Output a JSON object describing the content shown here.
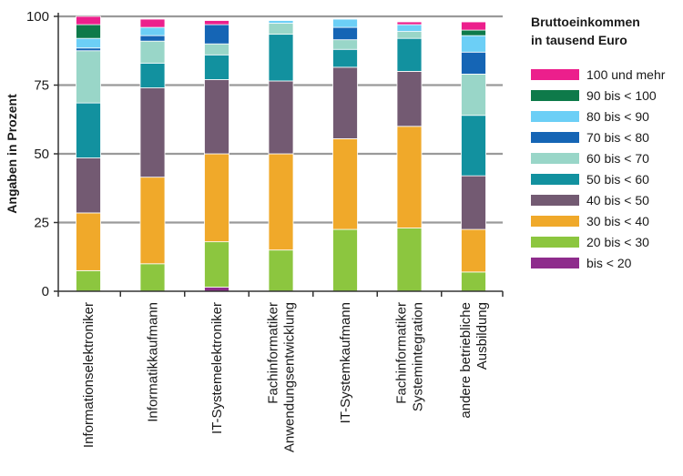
{
  "chart_data": {
    "type": "bar",
    "stacked": true,
    "ylabel": "Angaben in Prozent",
    "ylim": [
      0,
      100
    ],
    "yticks": [
      0,
      25,
      50,
      75,
      100
    ],
    "grid": true,
    "legend_position": "right",
    "legend_title": [
      "Bruttoeinkommen",
      "in tausend Euro"
    ],
    "categories": [
      [
        "Informationselektroniker"
      ],
      [
        "Informatikkaufmann"
      ],
      [
        "IT-Systemelektroniker"
      ],
      [
        "Fachinformatiker",
        "Anwendungsentwicklung"
      ],
      [
        "IT-Systemkaufmann"
      ],
      [
        "Fachinformatiker",
        "Systemintegration"
      ],
      [
        "andere betriebliche",
        "Ausbildung"
      ]
    ],
    "series": [
      {
        "name": "bis < 20",
        "color": "#8e2c8c",
        "values": [
          0,
          0,
          1.5,
          0,
          0,
          0,
          0
        ]
      },
      {
        "name": "20 bis < 30",
        "color": "#8cc63f",
        "values": [
          7.5,
          10,
          16.5,
          15,
          22.5,
          23,
          7
        ]
      },
      {
        "name": "30 bis < 40",
        "color": "#f0a92a",
        "values": [
          21,
          31.5,
          32,
          35,
          33,
          37,
          15.5
        ]
      },
      {
        "name": "40 bis < 50",
        "color": "#735a72",
        "values": [
          20,
          32.5,
          27,
          26.5,
          26,
          20,
          19.5
        ]
      },
      {
        "name": "50 bis < 60",
        "color": "#12919f",
        "values": [
          20,
          9,
          9,
          17,
          6.5,
          12,
          22
        ]
      },
      {
        "name": "60 bis < 70",
        "color": "#99d6c8",
        "values": [
          19,
          8,
          4,
          4,
          3.5,
          2.5,
          15
        ]
      },
      {
        "name": "70 bis < 80",
        "color": "#1565b5",
        "values": [
          1,
          2,
          7,
          0,
          4.5,
          0,
          8
        ]
      },
      {
        "name": "80 bis < 90",
        "color": "#6ccff6",
        "values": [
          3.5,
          3,
          0,
          1,
          3,
          2.5,
          6
        ]
      },
      {
        "name": "90 bis < 100",
        "color": "#0e7a4a",
        "values": [
          5,
          0,
          0,
          0,
          0,
          0,
          2
        ]
      },
      {
        "name": "100 und mehr",
        "color": "#ec1f8c",
        "values": [
          3,
          3,
          1.5,
          0,
          0,
          1,
          3
        ]
      }
    ]
  }
}
